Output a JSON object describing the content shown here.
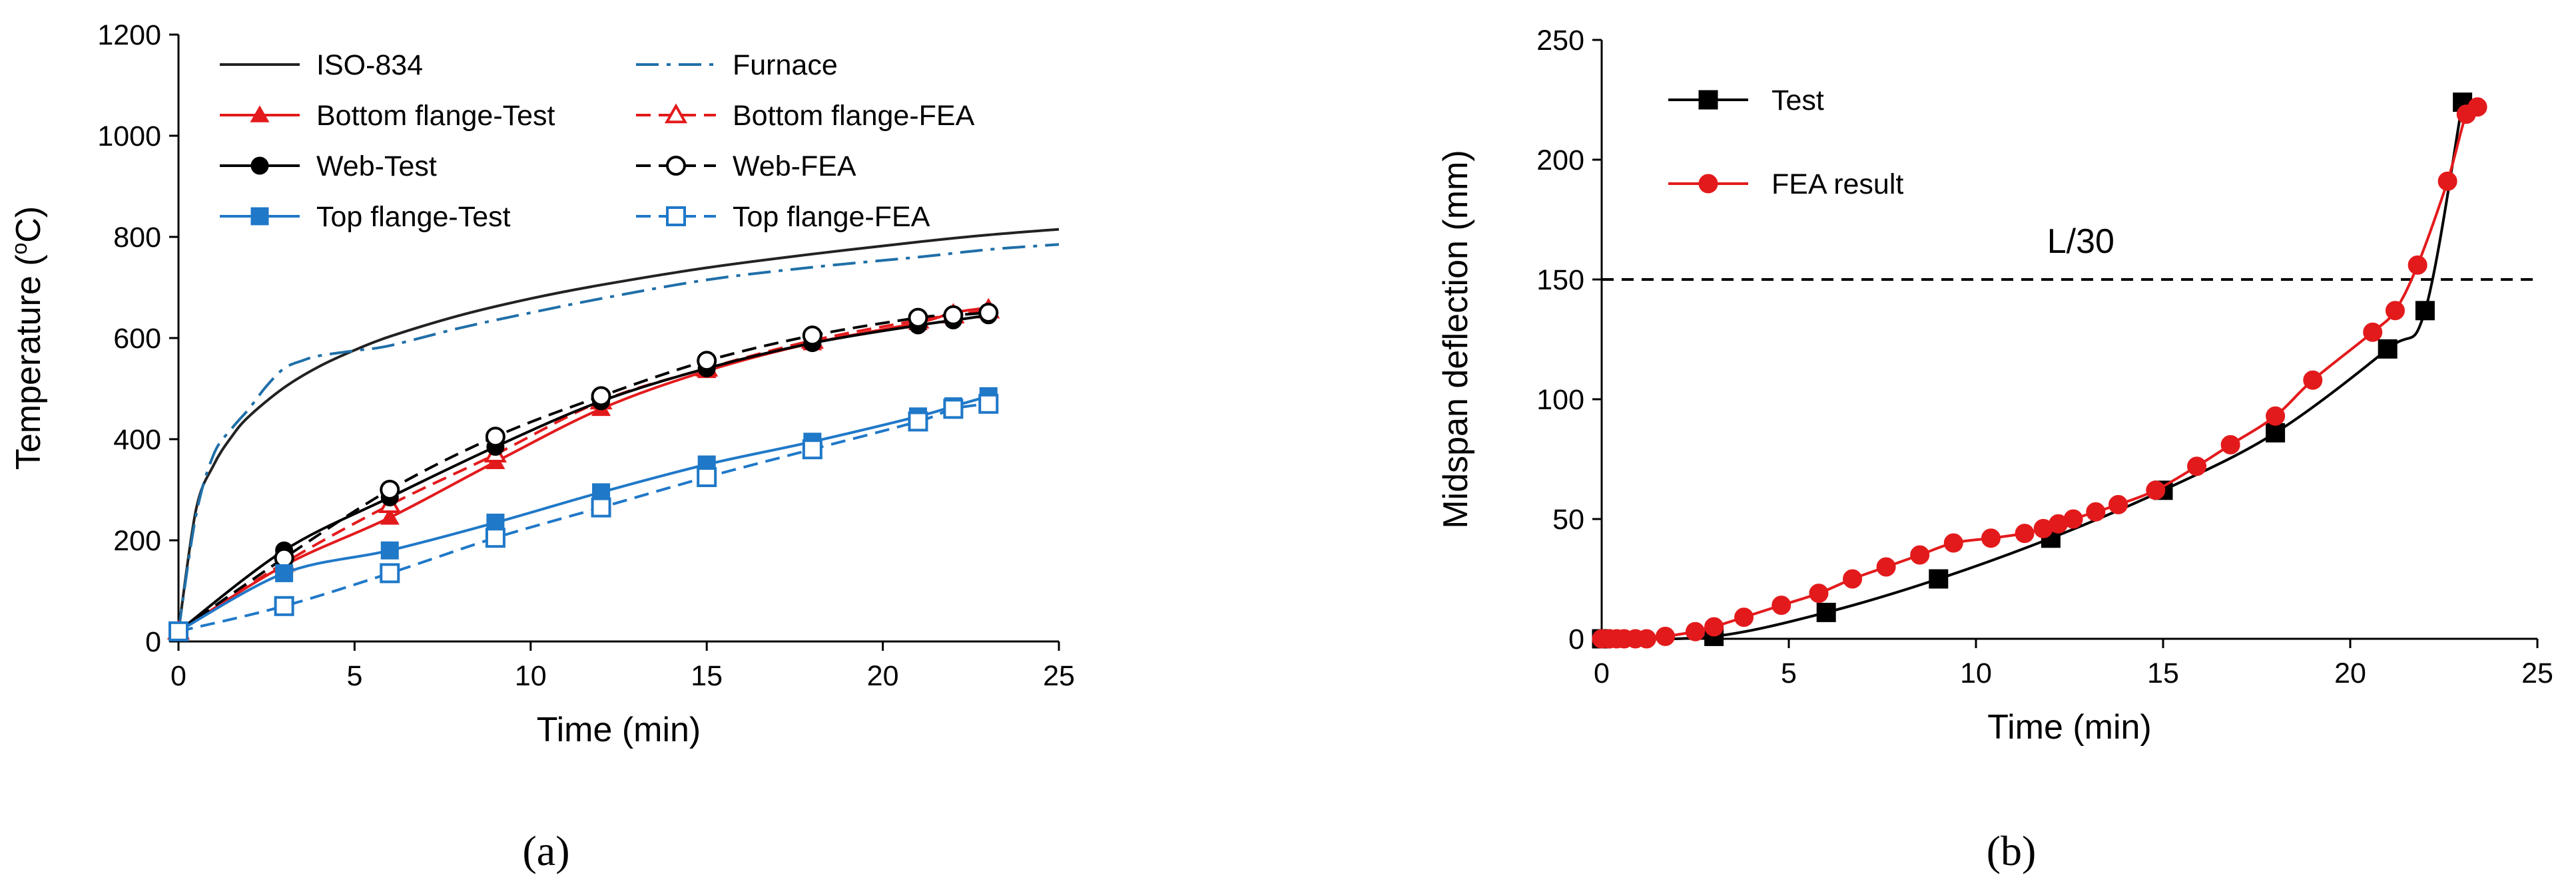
{
  "chart_data": [
    {
      "panel": "a",
      "type": "line",
      "title": "",
      "xlabel": "Time (min)",
      "ylabel_parts": [
        "Temperature (",
        "o",
        "C)"
      ],
      "xlim": [
        0,
        25
      ],
      "ylim": [
        0,
        1200
      ],
      "xticks": [
        0,
        5,
        10,
        15,
        20,
        25
      ],
      "yticks": [
        0,
        200,
        400,
        600,
        800,
        1000,
        1200
      ],
      "legend_position": "top-left, two columns",
      "series": [
        {
          "name": "ISO-834",
          "color": "#222222",
          "dash": "solid",
          "marker": "none",
          "smooth": true,
          "x": [
            0,
            0.5,
            1,
            1.5,
            2,
            3,
            4,
            5,
            6,
            8,
            10,
            12,
            15,
            18,
            21,
            23,
            25
          ],
          "y": [
            20,
            261,
            349,
            404,
            445,
            502,
            544,
            576,
            603,
            645,
            678,
            705,
            739,
            766,
            790,
            804,
            815
          ]
        },
        {
          "name": "Furnace",
          "color": "#1F6FA8",
          "dash": "dashdot",
          "marker": "none",
          "smooth": true,
          "x": [
            0,
            0.5,
            1,
            1.5,
            2,
            2.5,
            3,
            3.5,
            4,
            5,
            6,
            8,
            10,
            12,
            15,
            18,
            21,
            23,
            25
          ],
          "y": [
            20,
            250,
            370,
            420,
            460,
            505,
            540,
            555,
            565,
            575,
            585,
            620,
            650,
            678,
            715,
            740,
            760,
            775,
            785
          ]
        },
        {
          "name": "Bottom flange-Test",
          "color": "#E31A1C",
          "dash": "solid",
          "marker": "filled-triangle",
          "smooth": true,
          "x": [
            0,
            3,
            6,
            9,
            12,
            15,
            18,
            21,
            22,
            23
          ],
          "y": [
            20,
            150,
            245,
            355,
            460,
            535,
            590,
            630,
            650,
            660
          ]
        },
        {
          "name": "Bottom flange-FEA",
          "color": "#E31A1C",
          "dash": "dashed",
          "marker": "open-triangle",
          "smooth": true,
          "x": [
            0,
            3,
            6,
            9,
            12,
            15,
            18,
            21,
            22,
            23
          ],
          "y": [
            20,
            155,
            270,
            370,
            475,
            540,
            595,
            635,
            645,
            655
          ]
        },
        {
          "name": "Web-Test",
          "color": "#000000",
          "dash": "solid",
          "marker": "filled-circle",
          "smooth": true,
          "x": [
            0,
            3,
            6,
            9,
            12,
            15,
            18,
            21,
            22,
            23
          ],
          "y": [
            20,
            180,
            285,
            385,
            475,
            540,
            590,
            625,
            635,
            645
          ]
        },
        {
          "name": "Web-FEA",
          "color": "#000000",
          "dash": "dashed",
          "marker": "open-circle",
          "smooth": true,
          "x": [
            0,
            3,
            6,
            9,
            12,
            15,
            18,
            21,
            22,
            23
          ],
          "y": [
            20,
            165,
            300,
            405,
            485,
            555,
            605,
            640,
            645,
            650
          ]
        },
        {
          "name": "Top flange-Test",
          "color": "#1F78C8",
          "dash": "solid",
          "marker": "filled-square",
          "smooth": true,
          "x": [
            0,
            3,
            6,
            9,
            12,
            15,
            18,
            21,
            22,
            23
          ],
          "y": [
            20,
            135,
            180,
            235,
            295,
            350,
            395,
            445,
            465,
            485
          ]
        },
        {
          "name": "Top flange-FEA",
          "color": "#1F78C8",
          "dash": "dashed",
          "marker": "open-square",
          "smooth": true,
          "x": [
            0,
            3,
            6,
            9,
            12,
            15,
            18,
            21,
            22,
            23
          ],
          "y": [
            20,
            70,
            135,
            205,
            265,
            325,
            380,
            435,
            460,
            470
          ]
        }
      ],
      "panel_label": "(a)"
    },
    {
      "panel": "b",
      "type": "line",
      "title": "",
      "xlabel": "Time (min)",
      "ylabel": "Midspan deflection (mm)",
      "xlim": [
        0,
        25
      ],
      "ylim": [
        0,
        250
      ],
      "xticks": [
        0,
        5,
        10,
        15,
        20,
        25
      ],
      "yticks": [
        0,
        50,
        100,
        150,
        200,
        250
      ],
      "legend_position": "top-left",
      "reference_line": {
        "y": 150,
        "label": "L/30",
        "style": "dashed",
        "color": "#000000"
      },
      "series": [
        {
          "name": "Test",
          "color": "#000000",
          "dash": "solid",
          "marker": "filled-square",
          "smooth": true,
          "x": [
            0,
            3,
            6,
            9,
            12,
            15,
            18,
            21,
            22,
            23
          ],
          "y": [
            0,
            1,
            11,
            25,
            42,
            62,
            86,
            121,
            137,
            224
          ]
        },
        {
          "name": "FEA result",
          "color": "#E31A1C",
          "dash": "solid",
          "marker": "filled-circle",
          "smooth": true,
          "x": [
            0,
            0.2,
            0.4,
            0.6,
            0.9,
            1.2,
            1.7,
            2.5,
            3.0,
            3.8,
            4.8,
            5.8,
            6.7,
            7.6,
            8.5,
            9.4,
            10.4,
            11.3,
            11.8,
            12.2,
            12.6,
            13.2,
            13.8,
            14.8,
            15.9,
            16.8,
            18.0,
            19.0,
            20.6,
            21.2,
            21.8,
            22.6,
            23.1,
            23.4
          ],
          "y": [
            0,
            0,
            0,
            0,
            0,
            0,
            1,
            3,
            5,
            9,
            14,
            19,
            25,
            30,
            35,
            40,
            42,
            44,
            46,
            48,
            50,
            53,
            56,
            62,
            72,
            81,
            93,
            108,
            128,
            137,
            156,
            191,
            219,
            222
          ]
        }
      ],
      "panel_label": "(b)"
    }
  ]
}
